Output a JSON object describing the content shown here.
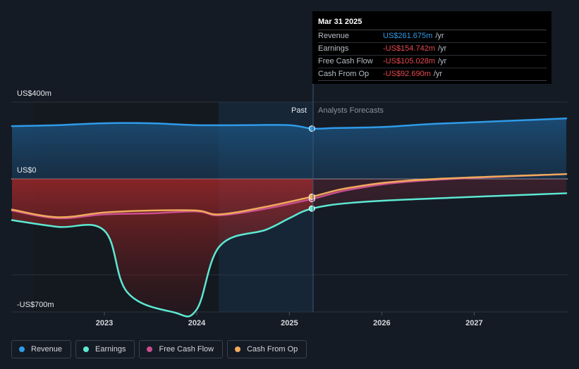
{
  "chart_data": {
    "type": "line",
    "y_axis": {
      "top_label": "US$400m",
      "zero_label": "US$0",
      "bottom_label": "-US$700m",
      "ylim": [
        -700,
        400
      ]
    },
    "x_axis": {
      "ticks": [
        "2023",
        "2024",
        "2025",
        "2026",
        "2027"
      ],
      "xlim": [
        "2022-01-01",
        "2027-12-31"
      ]
    },
    "regions": {
      "past_label": "Past",
      "forecast_label": "Analysts Forecasts",
      "divider_date": "2025-03-31"
    },
    "series": [
      {
        "name": "Revenue",
        "color": "#2f9be8",
        "points": [
          [
            "2022-01-01",
            275
          ],
          [
            "2022-07-01",
            280
          ],
          [
            "2023-01-01",
            290
          ],
          [
            "2023-07-01",
            290
          ],
          [
            "2024-01-01",
            280
          ],
          [
            "2024-07-01",
            280
          ],
          [
            "2025-01-01",
            280
          ],
          [
            "2025-03-31",
            262
          ],
          [
            "2025-07-01",
            265
          ],
          [
            "2026-01-01",
            270
          ],
          [
            "2026-07-01",
            285
          ],
          [
            "2027-01-01",
            295
          ],
          [
            "2027-12-31",
            315
          ]
        ]
      },
      {
        "name": "Earnings",
        "color": "#5de8d3",
        "points": [
          [
            "2022-01-01",
            -215
          ],
          [
            "2022-07-01",
            -250
          ],
          [
            "2023-01-01",
            -270
          ],
          [
            "2023-04-01",
            -590
          ],
          [
            "2023-10-01",
            -695
          ],
          [
            "2024-01-01",
            -680
          ],
          [
            "2024-04-01",
            -350
          ],
          [
            "2024-10-01",
            -265
          ],
          [
            "2025-01-01",
            -205
          ],
          [
            "2025-03-31",
            -155
          ],
          [
            "2025-09-01",
            -125
          ],
          [
            "2026-06-01",
            -105
          ],
          [
            "2027-12-31",
            -75
          ]
        ]
      },
      {
        "name": "Free Cash Flow",
        "color": "#c94f8f",
        "points": [
          [
            "2022-01-01",
            -165
          ],
          [
            "2022-07-01",
            -205
          ],
          [
            "2023-01-01",
            -185
          ],
          [
            "2023-07-01",
            -180
          ],
          [
            "2024-01-01",
            -170
          ],
          [
            "2024-04-01",
            -190
          ],
          [
            "2024-10-01",
            -155
          ],
          [
            "2025-03-31",
            -105
          ],
          [
            "2025-09-01",
            -55
          ],
          [
            "2026-06-01",
            -10
          ],
          [
            "2027-12-31",
            25
          ]
        ]
      },
      {
        "name": "Cash From Op",
        "color": "#f0aa5a",
        "points": [
          [
            "2022-01-01",
            -160
          ],
          [
            "2022-07-01",
            -200
          ],
          [
            "2023-01-01",
            -175
          ],
          [
            "2023-07-01",
            -165
          ],
          [
            "2024-01-01",
            -165
          ],
          [
            "2024-04-01",
            -185
          ],
          [
            "2024-10-01",
            -145
          ],
          [
            "2025-03-31",
            -93
          ],
          [
            "2025-09-01",
            -45
          ],
          [
            "2026-06-01",
            -5
          ],
          [
            "2027-12-31",
            25
          ]
        ]
      }
    ]
  },
  "tooltip": {
    "date": "Mar 31 2025",
    "rows": [
      {
        "name": "Revenue",
        "value": "US$261.675m",
        "unit": "/yr",
        "color": "#2f9be8"
      },
      {
        "name": "Earnings",
        "value": "-US$154.742m",
        "unit": "/yr",
        "color": "#e8494f"
      },
      {
        "name": "Free Cash Flow",
        "value": "-US$105.028m",
        "unit": "/yr",
        "color": "#e8494f"
      },
      {
        "name": "Cash From Op",
        "value": "-US$92.690m",
        "unit": "/yr",
        "color": "#e8494f"
      }
    ]
  },
  "legend": [
    {
      "label": "Revenue",
      "color": "#2f9be8"
    },
    {
      "label": "Earnings",
      "color": "#5de8d3"
    },
    {
      "label": "Free Cash Flow",
      "color": "#c94f8f"
    },
    {
      "label": "Cash From Op",
      "color": "#f0aa5a"
    }
  ]
}
